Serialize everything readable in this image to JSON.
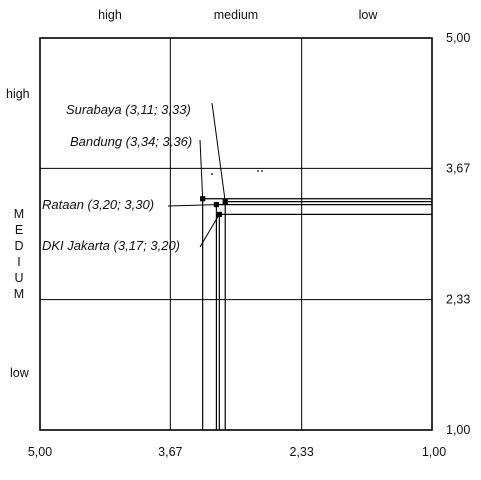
{
  "chart_data": {
    "type": "scatter",
    "title": "",
    "x_reversed": true,
    "xlim": [
      5.0,
      1.0
    ],
    "ylim": [
      1.0,
      5.0
    ],
    "x_ticks": [
      "5,00",
      "3,67",
      "2,33",
      "1,00"
    ],
    "y_ticks": [
      "5,00",
      "3,67",
      "2,33",
      "1,00"
    ],
    "top_labels": [
      "high",
      "medium",
      "low"
    ],
    "left_labels": [
      "high",
      "low"
    ],
    "left_vertical_label": "MEDIUM",
    "points": [
      {
        "label": "Surabaya (3,11; 3,33)",
        "x": 3.11,
        "y": 3.33
      },
      {
        "label": "Bandung (3,34; 3,36)",
        "x": 3.34,
        "y": 3.36
      },
      {
        "label": "Rataan (3,20; 3,30)",
        "x": 3.2,
        "y": 3.3
      },
      {
        "label": "DKI Jakarta (3,17; 3,20)",
        "x": 3.17,
        "y": 3.2
      }
    ]
  }
}
